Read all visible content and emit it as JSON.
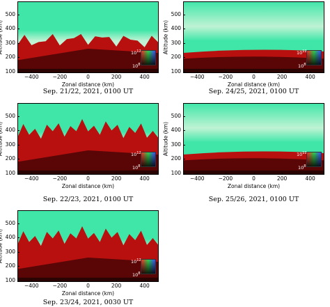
{
  "axes": {
    "ylabel": "Altitude (km)",
    "xlabel": "Zonal distance (km)",
    "yticks": [
      "100",
      "200",
      "300",
      "400",
      "500"
    ],
    "xticks": [
      "−400",
      "−200",
      "0",
      "200",
      "400"
    ]
  },
  "legend": {
    "top_base": "10",
    "top_exp": "12",
    "bottom_base": "10",
    "bottom_exp": "8"
  },
  "panels": [
    {
      "id": "p1",
      "caption": "Sep. 21/22, 2021, 0100 UT"
    },
    {
      "id": "p2",
      "caption": "Sep. 24/25, 2021, 0100 UT"
    },
    {
      "id": "p3",
      "caption": "Sep. 22/23, 2021, 0100 UT"
    },
    {
      "id": "p4",
      "caption": "Sep. 25/26, 2021, 0100 UT"
    },
    {
      "id": "p5",
      "caption": "Sep. 23/24, 2021, 0030 UT"
    }
  ],
  "colors": {
    "upper": "#3fe6a8",
    "upper_light": "#bff3d4",
    "mid_red": "#b80f0f",
    "dark_red": "#5a0606",
    "deep": "#2a0303"
  }
}
